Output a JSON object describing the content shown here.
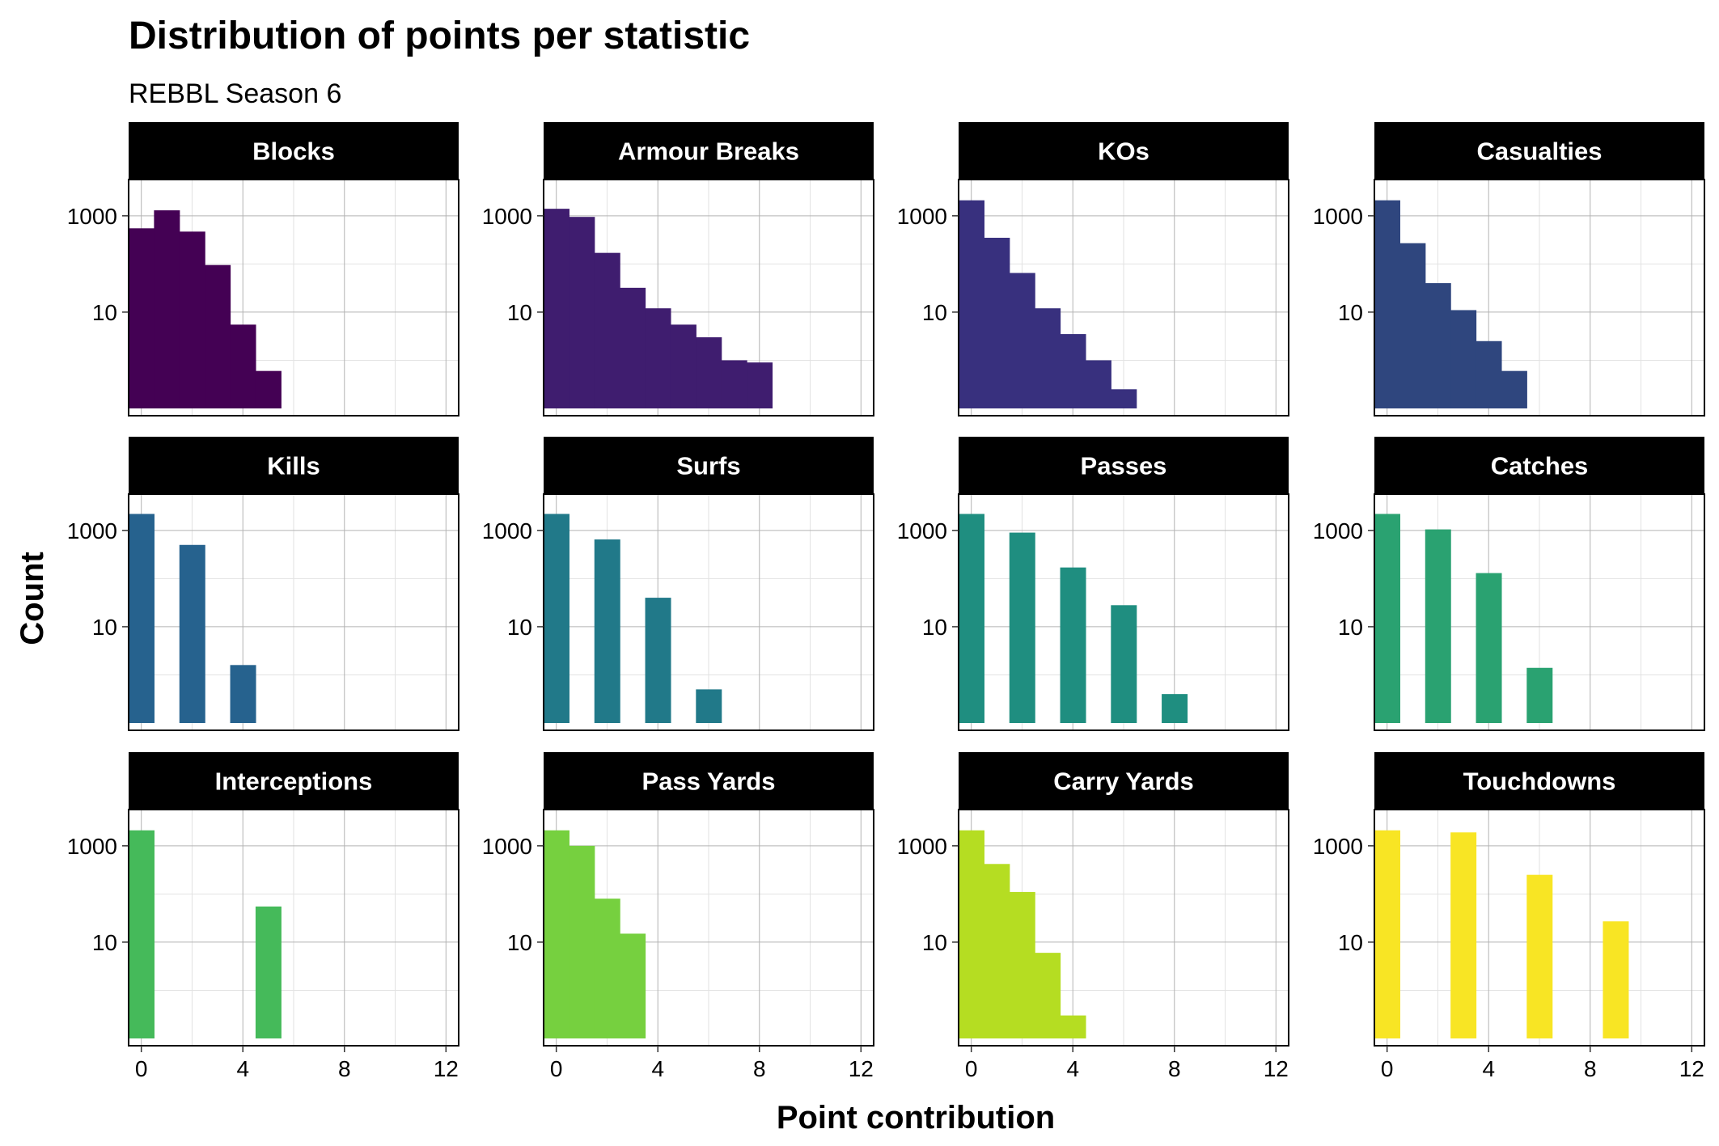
{
  "colors": {
    "grid_major": "#b3b3b3",
    "grid_minor": "#e2e2e2",
    "strip_bg": "#000000",
    "strip_text": "#ffffff",
    "panel_border": "#000000"
  },
  "chart_data": {
    "type": "bar",
    "title": "Distribution of points per statistic",
    "subtitle": "REBBL Season 6",
    "xlabel": "Point contribution",
    "ylabel": "Count",
    "x_scale": "linear",
    "y_scale": "log10",
    "xlim": [
      -0.5,
      12.5
    ],
    "x_ticks": [
      0,
      4,
      8,
      12
    ],
    "y_ticks": [
      10,
      1000
    ],
    "y_tick_labels": [
      "10",
      "1000"
    ],
    "grid": true,
    "layout": {
      "rows": 3,
      "cols": 4
    },
    "panels": [
      {
        "name": "Blocks",
        "color": "#440154",
        "bins": [
          {
            "x": 0,
            "count": 550
          },
          {
            "x": 1,
            "count": 1300
          },
          {
            "x": 2,
            "count": 470
          },
          {
            "x": 3,
            "count": 95
          },
          {
            "x": 4,
            "count": 5.5
          },
          {
            "x": 5,
            "count": 0.6
          }
        ]
      },
      {
        "name": "Armour Breaks",
        "color": "#3F1D6F",
        "bins": [
          {
            "x": 0,
            "count": 1400
          },
          {
            "x": 1,
            "count": 950
          },
          {
            "x": 2,
            "count": 170
          },
          {
            "x": 3,
            "count": 32
          },
          {
            "x": 4,
            "count": 12
          },
          {
            "x": 5,
            "count": 5.5
          },
          {
            "x": 6,
            "count": 3
          },
          {
            "x": 7,
            "count": 1
          },
          {
            "x": 8,
            "count": 0.9
          },
          {
            "x": 9,
            "count": 0.1
          }
        ]
      },
      {
        "name": "KOs",
        "color": "#38307E",
        "bins": [
          {
            "x": 0,
            "count": 2100
          },
          {
            "x": 1,
            "count": 350
          },
          {
            "x": 2,
            "count": 65
          },
          {
            "x": 3,
            "count": 12
          },
          {
            "x": 4,
            "count": 3.5
          },
          {
            "x": 5,
            "count": 1
          },
          {
            "x": 6,
            "count": 0.25
          }
        ]
      },
      {
        "name": "Casualties",
        "color": "#2F467E",
        "bins": [
          {
            "x": 0,
            "count": 2100
          },
          {
            "x": 1,
            "count": 270
          },
          {
            "x": 2,
            "count": 40
          },
          {
            "x": 3,
            "count": 11
          },
          {
            "x": 4,
            "count": 2.5
          },
          {
            "x": 5,
            "count": 0.6
          }
        ]
      },
      {
        "name": "Kills",
        "color": "#26628E",
        "bins": [
          {
            "x": 0,
            "count": 2200
          },
          {
            "x": 2,
            "count": 500
          },
          {
            "x": 4,
            "count": 1.6
          }
        ]
      },
      {
        "name": "Surfs",
        "color": "#217989",
        "bins": [
          {
            "x": 0,
            "count": 2200
          },
          {
            "x": 2,
            "count": 650
          },
          {
            "x": 4,
            "count": 40
          },
          {
            "x": 6,
            "count": 0.5
          }
        ]
      },
      {
        "name": "Passes",
        "color": "#1F8E80",
        "bins": [
          {
            "x": 0,
            "count": 2200
          },
          {
            "x": 2,
            "count": 900
          },
          {
            "x": 4,
            "count": 170
          },
          {
            "x": 6,
            "count": 28
          },
          {
            "x": 8,
            "count": 0.4
          }
        ]
      },
      {
        "name": "Catches",
        "color": "#2AA271",
        "bins": [
          {
            "x": 0,
            "count": 2200
          },
          {
            "x": 2,
            "count": 1050
          },
          {
            "x": 4,
            "count": 130
          },
          {
            "x": 6,
            "count": 1.4
          }
        ]
      },
      {
        "name": "Interceptions",
        "color": "#45BA5A",
        "bins": [
          {
            "x": 0,
            "count": 2100
          },
          {
            "x": 5,
            "count": 55
          }
        ]
      },
      {
        "name": "Pass Yards",
        "color": "#76D03F",
        "bins": [
          {
            "x": 0,
            "count": 2100
          },
          {
            "x": 1,
            "count": 1000
          },
          {
            "x": 2,
            "count": 80
          },
          {
            "x": 3,
            "count": 15
          }
        ]
      },
      {
        "name": "Carry Yards",
        "color": "#B5DD22",
        "bins": [
          {
            "x": 0,
            "count": 2100
          },
          {
            "x": 1,
            "count": 420
          },
          {
            "x": 2,
            "count": 110
          },
          {
            "x": 3,
            "count": 6
          },
          {
            "x": 4,
            "count": 0.3
          }
        ]
      },
      {
        "name": "Touchdowns",
        "color": "#F8E524",
        "bins": [
          {
            "x": 0,
            "count": 2100
          },
          {
            "x": 3,
            "count": 1900
          },
          {
            "x": 6,
            "count": 250
          },
          {
            "x": 9,
            "count": 27
          }
        ]
      }
    ]
  }
}
